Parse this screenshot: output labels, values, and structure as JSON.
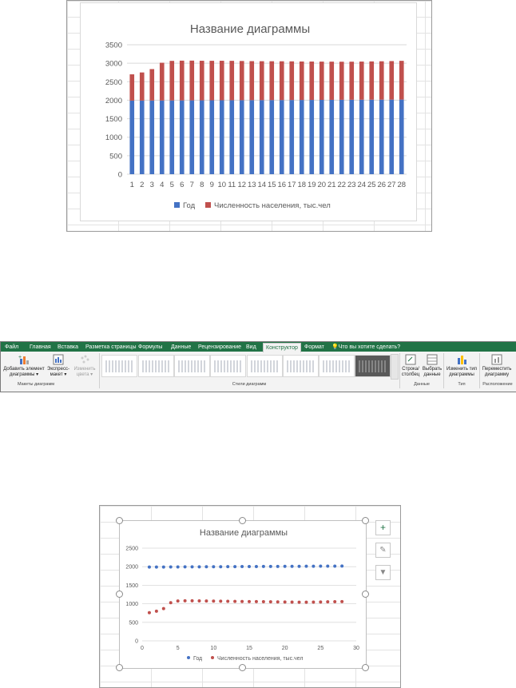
{
  "top_chart": {
    "title": "Название диаграммы",
    "legend": [
      "Год",
      "Численность населения, тыс.чел"
    ],
    "colors": {
      "year": "#4472C4",
      "pop": "#C0504D"
    }
  },
  "ribbon": {
    "tabs": [
      "Файл",
      "Главная",
      "Вставка",
      "Разметка страницы",
      "Формулы",
      "Данные",
      "Рецензирование",
      "Вид",
      "Конструктор",
      "Формат"
    ],
    "tell_me": "Что вы хотите сделать?",
    "add_element": "Добавить элемент диаграммы",
    "express_layout": "Экспресс-макет",
    "change_colors": "Изменить цвета",
    "switch_row_col": "Строка/ столбец",
    "select_data": "Выбрать данные",
    "change_type": "Изменить тип диаграммы",
    "move_chart": "Переместить диаграмму",
    "group_layouts": "Макеты диаграмм",
    "group_styles": "Стили диаграмм",
    "group_data": "Данные",
    "group_type": "Тип",
    "group_location": "Расположение"
  },
  "bottom_chart": {
    "title": "Название диаграммы",
    "legend": [
      "Год",
      "Численность населения, тыс.чел"
    ],
    "side_buttons": [
      "plus-icon",
      "brush-icon",
      "filter-icon"
    ]
  },
  "chart_data": [
    {
      "type": "bar",
      "stacked": true,
      "title": "Название диаграммы",
      "categories": [
        "1",
        "2",
        "3",
        "4",
        "5",
        "6",
        "7",
        "8",
        "9",
        "10",
        "11",
        "12",
        "13",
        "14",
        "15",
        "16",
        "17",
        "18",
        "19",
        "20",
        "21",
        "22",
        "23",
        "24",
        "25",
        "26",
        "27",
        "28"
      ],
      "yticks": [
        "0",
        "500",
        "1000",
        "1500",
        "2000",
        "2500",
        "3000",
        "3500"
      ],
      "ylim": [
        0,
        3500
      ],
      "series": [
        {
          "name": "Год",
          "values": [
            1990,
            1991,
            1992,
            1993,
            1994,
            1995,
            1996,
            1997,
            1998,
            1999,
            2000,
            2001,
            2002,
            2003,
            2004,
            2005,
            2006,
            2007,
            2008,
            2009,
            2010,
            2011,
            2012,
            2013,
            2014,
            2015,
            2016,
            2017
          ]
        },
        {
          "name": "Численность населения, тыс.чел",
          "values": [
            710,
            760,
            850,
            1020,
            1070,
            1075,
            1075,
            1070,
            1068,
            1068,
            1065,
            1060,
            1055,
            1052,
            1050,
            1048,
            1045,
            1040,
            1038,
            1035,
            1033,
            1030,
            1030,
            1032,
            1035,
            1038,
            1042,
            1048
          ]
        }
      ],
      "legend_position": "bottom"
    },
    {
      "type": "scatter",
      "title": "Название диаграммы",
      "xticks": [
        "0",
        "5",
        "10",
        "15",
        "20",
        "25",
        "30"
      ],
      "yticks": [
        "0",
        "500",
        "1000",
        "1500",
        "2000",
        "2500"
      ],
      "xlim": [
        0,
        30
      ],
      "ylim": [
        0,
        2500
      ],
      "series": [
        {
          "name": "Год",
          "x": [
            1,
            2,
            3,
            4,
            5,
            6,
            7,
            8,
            9,
            10,
            11,
            12,
            13,
            14,
            15,
            16,
            17,
            18,
            19,
            20,
            21,
            22,
            23,
            24,
            25,
            26,
            27,
            28
          ],
          "values": [
            1990,
            1991,
            1992,
            1993,
            1994,
            1995,
            1996,
            1997,
            1998,
            1999,
            2000,
            2001,
            2002,
            2003,
            2004,
            2005,
            2006,
            2007,
            2008,
            2009,
            2010,
            2011,
            2012,
            2013,
            2014,
            2015,
            2016,
            2017
          ]
        },
        {
          "name": "Численность населения, тыс.чел",
          "x": [
            1,
            2,
            3,
            4,
            5,
            6,
            7,
            8,
            9,
            10,
            11,
            12,
            13,
            14,
            15,
            16,
            17,
            18,
            19,
            20,
            21,
            22,
            23,
            24,
            25,
            26,
            27,
            28
          ],
          "values": [
            760,
            800,
            870,
            1030,
            1075,
            1080,
            1080,
            1078,
            1075,
            1072,
            1070,
            1068,
            1065,
            1062,
            1060,
            1058,
            1055,
            1052,
            1050,
            1048,
            1045,
            1043,
            1043,
            1045,
            1048,
            1052,
            1055,
            1060
          ]
        }
      ],
      "legend_position": "bottom"
    }
  ]
}
